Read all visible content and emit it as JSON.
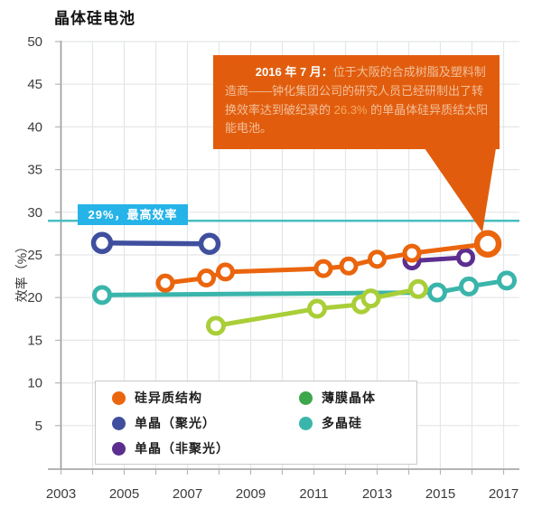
{
  "title": "晶体硅电池",
  "y_axis_title": "效率（%）",
  "annotation_29": {
    "label": "29%，最高效率",
    "value": 29,
    "line_color": "#49bec0",
    "box_color": "#25b3e8"
  },
  "callout": {
    "bg_color": "#e15d0d",
    "lead": "2016 年 7 月：",
    "body_before": "位于大阪的合成树脂及塑料制造商——钟化集团公司的研究人员已经研制出了转换效率达到破纪录的 ",
    "highlight": "26.3%",
    "body_after": " 的单晶体硅异质结太阳能电池。"
  },
  "legend": {
    "items": [
      {
        "key": "sij",
        "label": "硅异质结构",
        "color": "#ea650d"
      },
      {
        "key": "mono-conc",
        "label": "单晶（聚光）",
        "color": "#3f4f9e"
      },
      {
        "key": "mono-nonconc",
        "label": "单晶（非聚光）",
        "color": "#5c2e8f"
      },
      {
        "key": "thin-film",
        "label": "薄膜晶体",
        "color": "#3ea64b"
      },
      {
        "key": "multi-si",
        "label": "多晶硅",
        "color": "#3ab5ab"
      }
    ]
  },
  "chart_data": {
    "type": "line",
    "title": "晶体硅电池",
    "xlabel": "",
    "ylabel": "效率（%）",
    "xlim": [
      2003,
      2017.5
    ],
    "ylim": [
      0,
      50
    ],
    "xticks": [
      2003,
      2005,
      2007,
      2009,
      2011,
      2013,
      2015,
      2017
    ],
    "yticks": [
      5,
      10,
      15,
      20,
      25,
      30,
      35,
      40,
      45,
      50
    ],
    "grid": true,
    "grid_every_year": true,
    "legend_position": "bottom-left-box",
    "ref_line": {
      "y": 29,
      "label": "29%，最高效率",
      "color": "#49bec0"
    },
    "series": [
      {
        "key": "sij",
        "name": "硅异质结构",
        "color": "#ea650d",
        "z": 5,
        "marker_r": 8,
        "stroke_w": 5,
        "last_marker_large": true,
        "points": [
          [
            2006.3,
            21.7
          ],
          [
            2007.6,
            22.3
          ],
          [
            2008.2,
            23.0
          ],
          [
            2011.3,
            23.4
          ],
          [
            2012.1,
            23.7
          ],
          [
            2013.0,
            24.5
          ],
          [
            2014.1,
            25.2
          ],
          [
            2016.5,
            26.3
          ]
        ]
      },
      {
        "key": "mono-conc",
        "name": "单晶（聚光）",
        "color": "#3f4f9e",
        "z": 3,
        "marker_r": 9.5,
        "stroke_w": 5.5,
        "points": [
          [
            2004.3,
            26.4
          ],
          [
            2007.7,
            26.3
          ]
        ]
      },
      {
        "key": "mono-nonconc",
        "name": "单晶（非聚光）",
        "color": "#5c2e8f",
        "z": 4,
        "marker_r": 8,
        "stroke_w": 5,
        "points": [
          [
            2014.1,
            24.3
          ],
          [
            2015.8,
            24.7
          ]
        ]
      },
      {
        "key": "thin-film",
        "name": "薄膜晶体",
        "color": "#a9ce38",
        "legend_color": "#3ea64b",
        "z": 2,
        "marker_r": 8.5,
        "stroke_w": 5,
        "points": [
          [
            2007.9,
            16.7
          ],
          [
            2011.1,
            18.7
          ],
          [
            2012.5,
            19.2
          ],
          [
            2012.8,
            19.9
          ],
          [
            2014.3,
            21.0
          ]
        ]
      },
      {
        "key": "multi-si",
        "name": "多晶硅",
        "color": "#3ab5ab",
        "z": 1,
        "marker_r": 8.5,
        "stroke_w": 5,
        "points": [
          [
            2004.3,
            20.3
          ],
          [
            2014.9,
            20.6
          ],
          [
            2015.9,
            21.3
          ],
          [
            2017.1,
            22.0
          ]
        ]
      }
    ]
  }
}
